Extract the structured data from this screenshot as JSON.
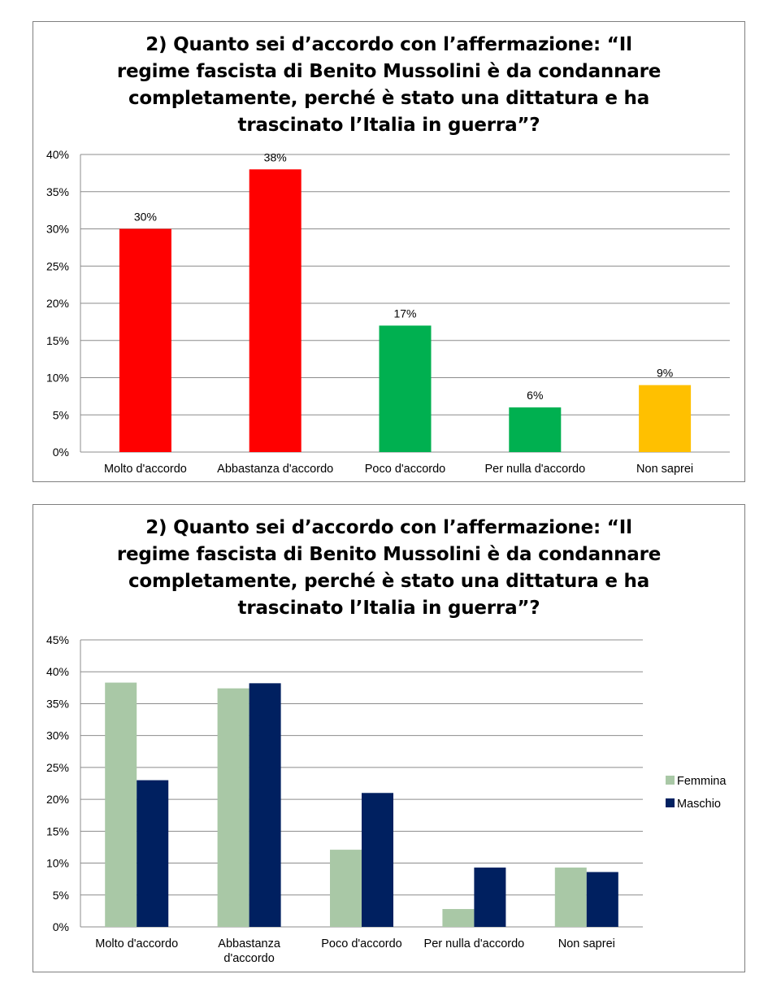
{
  "chart_data": [
    {
      "type": "bar",
      "title_lines": [
        "2) Quanto sei d’accordo con l’affermazione: “Il",
        "regime fascista di Benito Mussolini è da condannare",
        "completamente, perché è stato una dittatura e ha",
        "trascinato l’Italia in guerra”?"
      ],
      "categories": [
        "Molto d'accordo",
        "Abbastanza d'accordo",
        "Poco d'accordo",
        "Per nulla d'accordo",
        "Non saprei"
      ],
      "values": [
        30,
        38,
        17,
        6,
        9
      ],
      "data_labels": [
        "30%",
        "38%",
        "17%",
        "6%",
        "9%"
      ],
      "bar_colors": [
        "#ff0000",
        "#ff0000",
        "#00b050",
        "#00b050",
        "#ffc000"
      ],
      "ylim": [
        0,
        40
      ],
      "yticks": [
        "0%",
        "5%",
        "10%",
        "15%",
        "20%",
        "25%",
        "30%",
        "35%",
        "40%"
      ],
      "grid": true,
      "legend": "none"
    },
    {
      "type": "bar",
      "title_lines": [
        "2) Quanto sei d’accordo con l’affermazione: “Il",
        "regime fascista di Benito Mussolini è da condannare",
        "completamente, perché è stato una dittatura e ha",
        "trascinato l’Italia in guerra”?"
      ],
      "categories": [
        [
          "Molto d'accordo"
        ],
        [
          "Abbastanza",
          "d'accordo"
        ],
        [
          "Poco d'accordo"
        ],
        [
          "Per nulla d'accordo"
        ],
        [
          "Non saprei"
        ]
      ],
      "series": [
        {
          "name": "Femmina",
          "color": "#a9c8a6",
          "values": [
            38.3,
            37.4,
            12.1,
            2.8,
            9.3
          ]
        },
        {
          "name": "Maschio",
          "color": "#002060",
          "values": [
            23.0,
            38.2,
            21.0,
            9.3,
            8.6
          ]
        }
      ],
      "ylim": [
        0,
        45
      ],
      "yticks": [
        "0%",
        "5%",
        "10%",
        "15%",
        "20%",
        "25%",
        "30%",
        "35%",
        "40%",
        "45%"
      ],
      "grid": true,
      "legend": "right"
    }
  ]
}
